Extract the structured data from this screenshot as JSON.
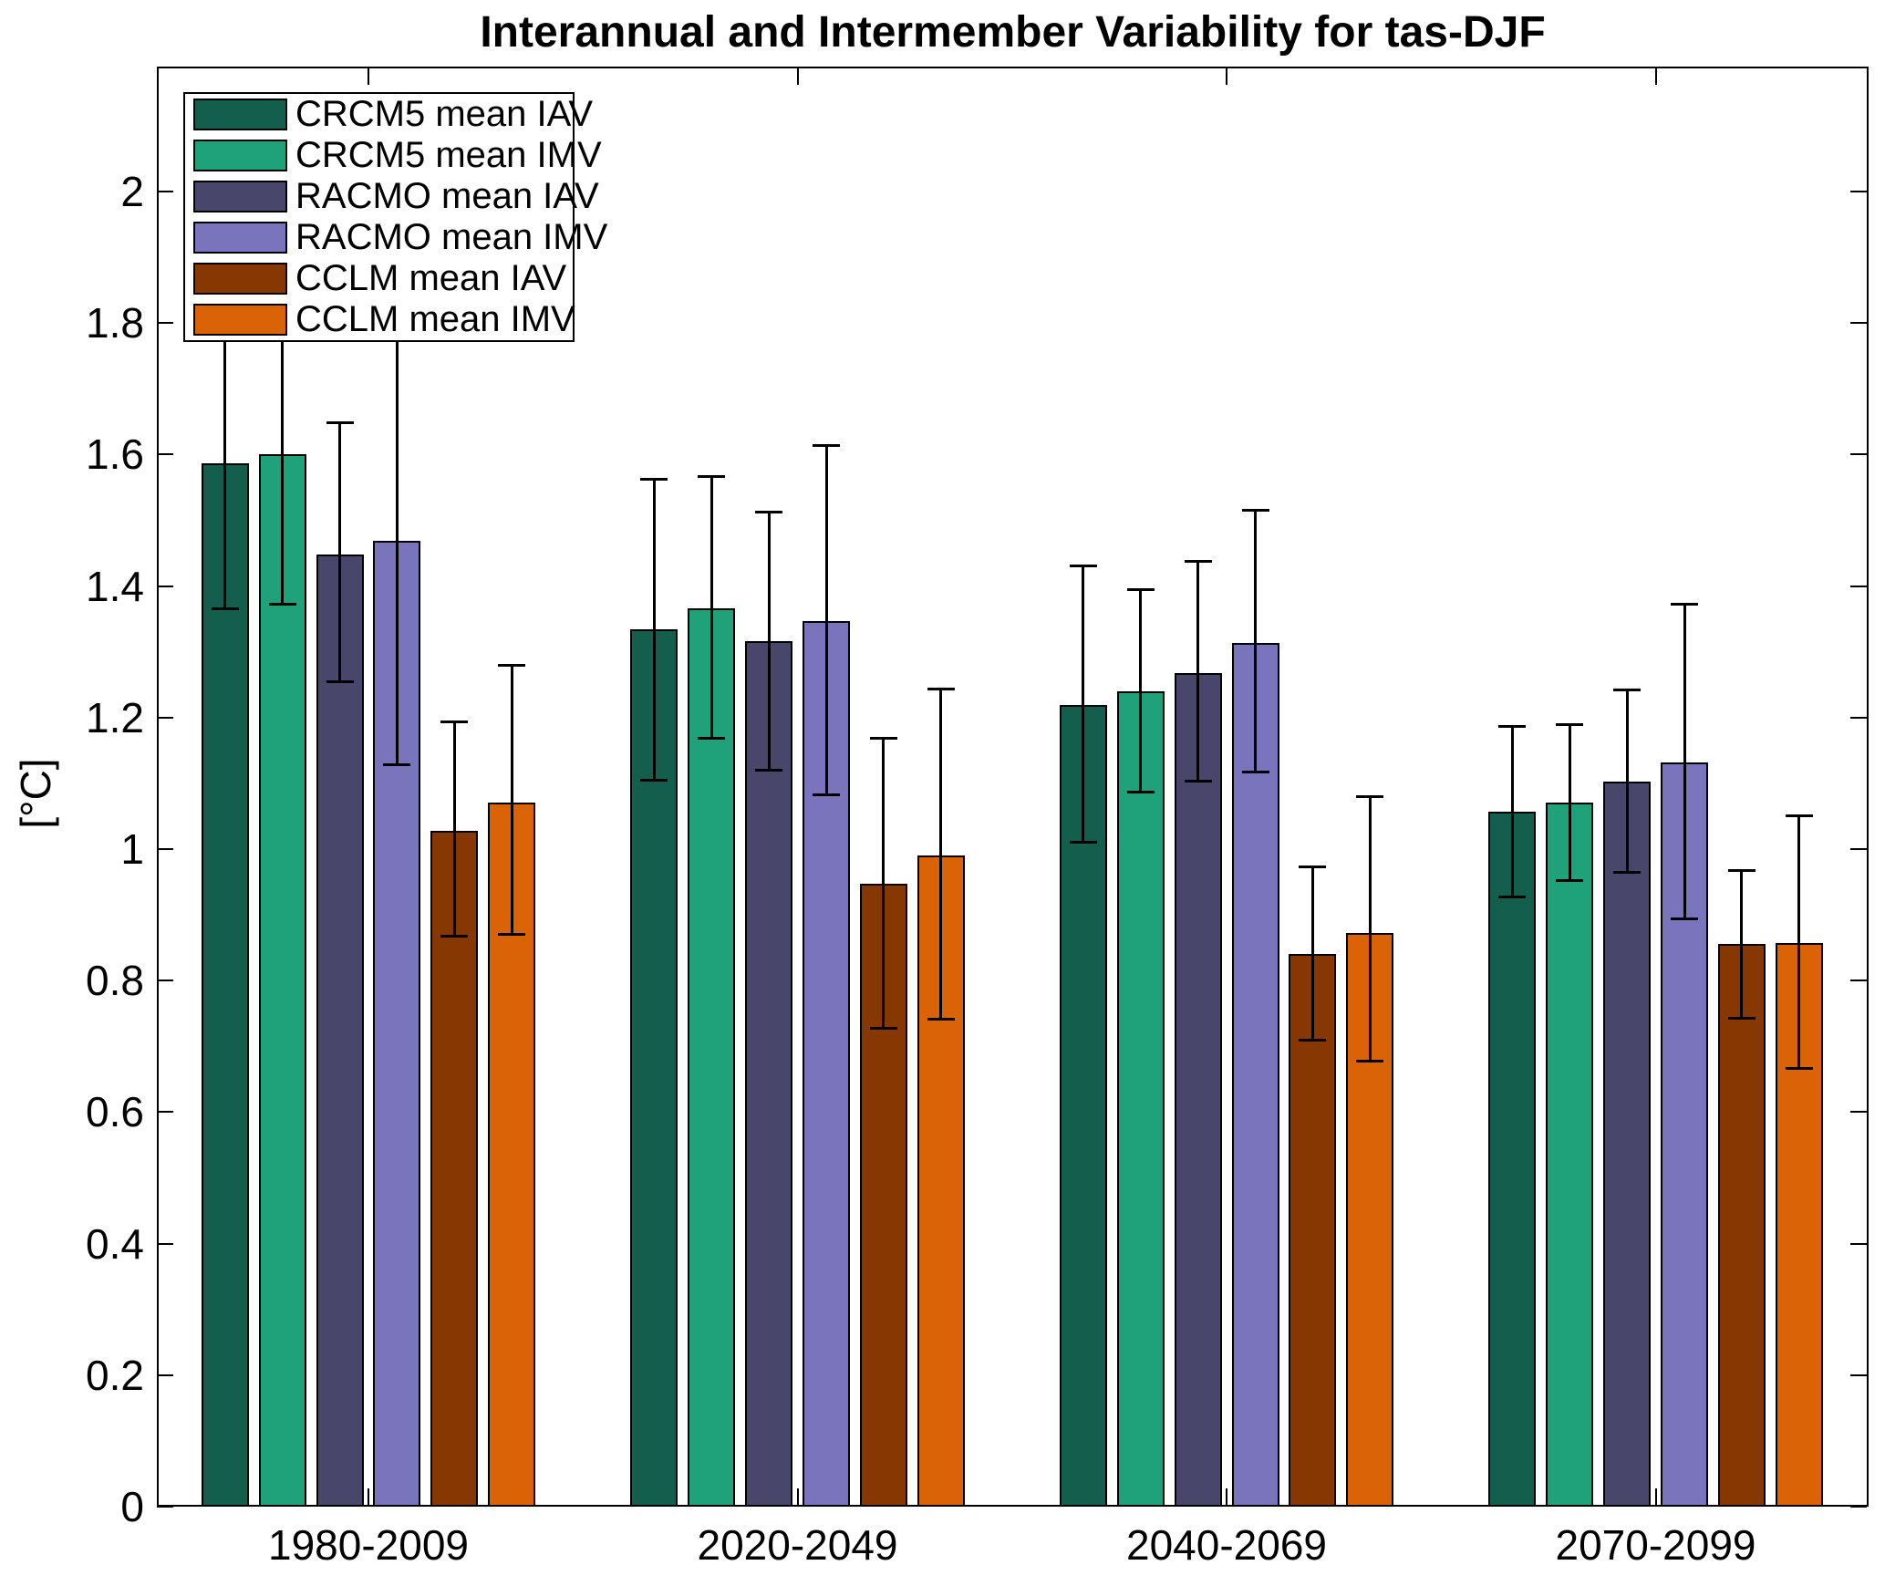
{
  "figure": {
    "title": "Interannual and Intermember Variability for tas-DJF"
  },
  "chart_data": {
    "type": "bar",
    "title": "Interannual and Intermember Variability for tas-DJF",
    "xlabel": "",
    "ylabel": "[°C]",
    "categories": [
      "1980-2009",
      "2020-2049",
      "2040-2069",
      "2070-2099"
    ],
    "series": [
      {
        "name": "CRCM5 mean IAV",
        "color": "#135e4c",
        "values": [
          1.587,
          1.334,
          1.219,
          1.057
        ],
        "err_lo": [
          1.366,
          1.105,
          1.011,
          0.927
        ],
        "err_hi": [
          1.808,
          1.562,
          1.431,
          1.186
        ]
      },
      {
        "name": "CRCM5 mean IMV",
        "color": "#1fa179",
        "values": [
          1.6,
          1.366,
          1.24,
          1.071
        ],
        "err_lo": [
          1.373,
          1.168,
          1.087,
          0.952
        ],
        "err_hi": [
          1.827,
          1.566,
          1.395,
          1.19
        ]
      },
      {
        "name": "RACMO mean IAV",
        "color": "#49466b",
        "values": [
          1.448,
          1.316,
          1.268,
          1.103
        ],
        "err_lo": [
          1.254,
          1.12,
          1.104,
          0.965
        ],
        "err_hi": [
          1.649,
          1.513,
          1.437,
          1.242
        ]
      },
      {
        "name": "RACMO mean IMV",
        "color": "#7974bb",
        "values": [
          1.469,
          1.347,
          1.313,
          1.132
        ],
        "err_lo": [
          1.129,
          1.082,
          1.117,
          0.894
        ],
        "err_hi": [
          1.809,
          1.614,
          1.516,
          1.372
        ]
      },
      {
        "name": "CCLM mean IAV",
        "color": "#873701",
        "values": [
          1.028,
          0.947,
          0.84,
          0.856
        ],
        "err_lo": [
          0.867,
          0.727,
          0.709,
          0.743
        ],
        "err_hi": [
          1.193,
          1.169,
          0.973,
          0.967
        ]
      },
      {
        "name": "CCLM mean IMV",
        "color": "#d96306",
        "values": [
          1.071,
          0.99,
          0.872,
          0.857
        ],
        "err_lo": [
          0.87,
          0.742,
          0.678,
          0.667
        ],
        "err_hi": [
          1.279,
          1.244,
          1.08,
          1.05
        ]
      }
    ],
    "ylim": [
      0,
      2.19
    ],
    "yticks": [
      0,
      0.2,
      0.4,
      0.6,
      0.8,
      1,
      1.2,
      1.4,
      1.6,
      1.8,
      2
    ],
    "ytick_labels": [
      "0",
      "0.2",
      "0.4",
      "0.6",
      "0.8",
      "1",
      "1.2",
      "1.4",
      "1.6",
      "1.8",
      "2"
    ],
    "grid": false,
    "legend_position": "top-left",
    "error_bars": true,
    "axis_color": "#000000",
    "background_color": "#ffffff"
  }
}
